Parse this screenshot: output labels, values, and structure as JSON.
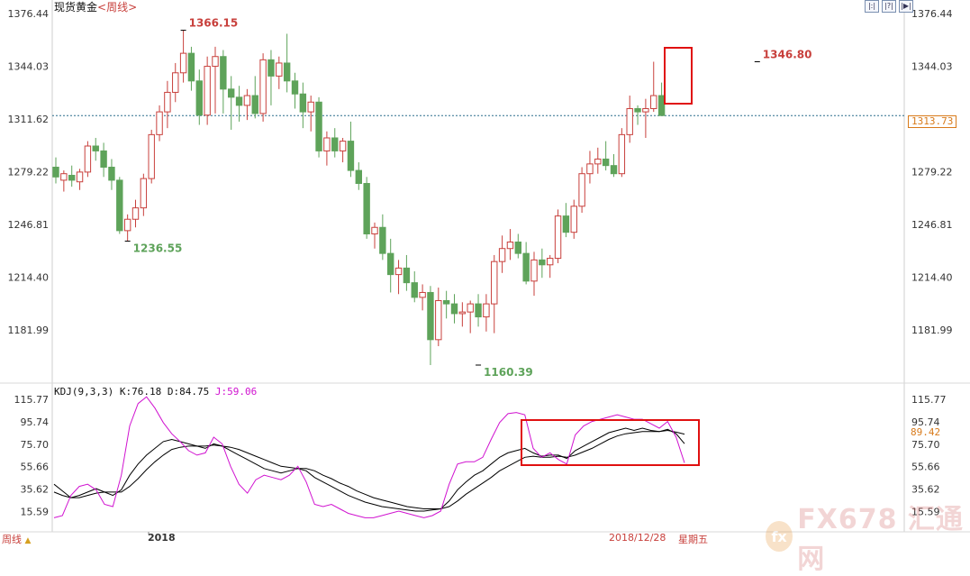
{
  "title": {
    "instrument": "现货黄金",
    "timeframe": "<周线>"
  },
  "toolbar": {
    "buttons": [
      "|:|",
      "|?|",
      "|▶|"
    ]
  },
  "current_price_label": "1313.73",
  "kdj_header": {
    "params": "KDJ(9,3,3)",
    "k": "K:76.18",
    "d": "D:84.75",
    "j": "J:59.06"
  },
  "kdj_current_label": "89.42",
  "bottom": {
    "period": "周线",
    "period_arrow": "▲",
    "year": "2018",
    "date": "2018/12/28",
    "weekday": "星期五"
  },
  "watermark": {
    "logo": "fx",
    "text": "FX678 汇通网"
  },
  "colors": {
    "up": "#c8403c",
    "down": "#5ea35a",
    "price_line": "#2c6f8c",
    "k": "#000000",
    "d": "#000000",
    "j": "#d012d0",
    "box": "#e01010"
  },
  "chart_data": [
    {
      "type": "candlestick",
      "title": "现货黄金<周线>",
      "price_axis_ticks": [
        "1376.44",
        "1344.03",
        "1311.62",
        "1279.22",
        "1246.81",
        "1214.40",
        "1181.99"
      ],
      "ylim": [
        1158,
        1380
      ],
      "current_price": 1313.73,
      "annotations": [
        {
          "label": "1366.15",
          "value": 1366.15,
          "index": 16,
          "color": "#c8403c"
        },
        {
          "label": "1236.55",
          "value": 1236.55,
          "index": 9,
          "color": "#5ea35a"
        },
        {
          "label": "1160.39",
          "value": 1160.39,
          "index": 53,
          "color": "#5ea35a"
        },
        {
          "label": "1346.80",
          "value": 1346.8,
          "index": 88,
          "color": "#c8403c"
        }
      ],
      "candles": [
        {
          "o": 1282,
          "h": 1288,
          "l": 1272,
          "c": 1276
        },
        {
          "o": 1274,
          "h": 1280,
          "l": 1267,
          "c": 1278
        },
        {
          "o": 1277,
          "h": 1283,
          "l": 1270,
          "c": 1274
        },
        {
          "o": 1273,
          "h": 1281,
          "l": 1268,
          "c": 1279
        },
        {
          "o": 1279,
          "h": 1298,
          "l": 1276,
          "c": 1295
        },
        {
          "o": 1295,
          "h": 1300,
          "l": 1286,
          "c": 1292
        },
        {
          "o": 1292,
          "h": 1297,
          "l": 1276,
          "c": 1282
        },
        {
          "o": 1282,
          "h": 1287,
          "l": 1268,
          "c": 1274
        },
        {
          "o": 1274,
          "h": 1276,
          "l": 1241,
          "c": 1243
        },
        {
          "o": 1243,
          "h": 1253,
          "l": 1236.55,
          "c": 1250
        },
        {
          "o": 1250,
          "h": 1262,
          "l": 1245,
          "c": 1257
        },
        {
          "o": 1257,
          "h": 1278,
          "l": 1252,
          "c": 1275
        },
        {
          "o": 1275,
          "h": 1305,
          "l": 1272,
          "c": 1302
        },
        {
          "o": 1302,
          "h": 1320,
          "l": 1298,
          "c": 1316
        },
        {
          "o": 1316,
          "h": 1335,
          "l": 1306,
          "c": 1328
        },
        {
          "o": 1328,
          "h": 1346,
          "l": 1322,
          "c": 1340
        },
        {
          "o": 1340,
          "h": 1366.15,
          "l": 1334,
          "c": 1352
        },
        {
          "o": 1352,
          "h": 1356,
          "l": 1329,
          "c": 1335
        },
        {
          "o": 1335,
          "h": 1342,
          "l": 1308,
          "c": 1314
        },
        {
          "o": 1314,
          "h": 1350,
          "l": 1308,
          "c": 1344
        },
        {
          "o": 1344,
          "h": 1356,
          "l": 1315,
          "c": 1350
        },
        {
          "o": 1350,
          "h": 1354,
          "l": 1315,
          "c": 1330
        },
        {
          "o": 1330,
          "h": 1338,
          "l": 1305,
          "c": 1325
        },
        {
          "o": 1325,
          "h": 1332,
          "l": 1310,
          "c": 1320
        },
        {
          "o": 1320,
          "h": 1330,
          "l": 1311,
          "c": 1326
        },
        {
          "o": 1326,
          "h": 1338,
          "l": 1312,
          "c": 1315
        },
        {
          "o": 1315,
          "h": 1352,
          "l": 1310,
          "c": 1348
        },
        {
          "o": 1348,
          "h": 1354,
          "l": 1320,
          "c": 1338
        },
        {
          "o": 1338,
          "h": 1350,
          "l": 1330,
          "c": 1346
        },
        {
          "o": 1346,
          "h": 1364,
          "l": 1328,
          "c": 1335
        },
        {
          "o": 1335,
          "h": 1340,
          "l": 1318,
          "c": 1327
        },
        {
          "o": 1327,
          "h": 1334,
          "l": 1306,
          "c": 1316
        },
        {
          "o": 1316,
          "h": 1326,
          "l": 1304,
          "c": 1322
        },
        {
          "o": 1322,
          "h": 1325,
          "l": 1288,
          "c": 1292
        },
        {
          "o": 1292,
          "h": 1304,
          "l": 1283,
          "c": 1300
        },
        {
          "o": 1300,
          "h": 1306,
          "l": 1288,
          "c": 1292
        },
        {
          "o": 1292,
          "h": 1300,
          "l": 1285,
          "c": 1298
        },
        {
          "o": 1298,
          "h": 1310,
          "l": 1276,
          "c": 1280
        },
        {
          "o": 1280,
          "h": 1285,
          "l": 1268,
          "c": 1272
        },
        {
          "o": 1272,
          "h": 1276,
          "l": 1238,
          "c": 1241
        },
        {
          "o": 1241,
          "h": 1248,
          "l": 1232,
          "c": 1245
        },
        {
          "o": 1245,
          "h": 1253,
          "l": 1225,
          "c": 1229
        },
        {
          "o": 1229,
          "h": 1238,
          "l": 1205,
          "c": 1216
        },
        {
          "o": 1216,
          "h": 1225,
          "l": 1204,
          "c": 1220
        },
        {
          "o": 1220,
          "h": 1228,
          "l": 1206,
          "c": 1211
        },
        {
          "o": 1211,
          "h": 1218,
          "l": 1199,
          "c": 1202
        },
        {
          "o": 1202,
          "h": 1210,
          "l": 1194,
          "c": 1205
        },
        {
          "o": 1205,
          "h": 1209,
          "l": 1160.39,
          "c": 1176
        },
        {
          "o": 1176,
          "h": 1208,
          "l": 1172,
          "c": 1200
        },
        {
          "o": 1200,
          "h": 1206,
          "l": 1189,
          "c": 1198
        },
        {
          "o": 1198,
          "h": 1204,
          "l": 1186,
          "c": 1192
        },
        {
          "o": 1192,
          "h": 1199,
          "l": 1184,
          "c": 1193
        },
        {
          "o": 1193,
          "h": 1200,
          "l": 1180,
          "c": 1198
        },
        {
          "o": 1198,
          "h": 1204,
          "l": 1184,
          "c": 1190
        },
        {
          "o": 1190,
          "h": 1204,
          "l": 1181,
          "c": 1198
        },
        {
          "o": 1198,
          "h": 1228,
          "l": 1180,
          "c": 1224
        },
        {
          "o": 1224,
          "h": 1240,
          "l": 1217,
          "c": 1232
        },
        {
          "o": 1232,
          "h": 1244,
          "l": 1225,
          "c": 1236
        },
        {
          "o": 1236,
          "h": 1241,
          "l": 1226,
          "c": 1229
        },
        {
          "o": 1229,
          "h": 1236,
          "l": 1210,
          "c": 1212
        },
        {
          "o": 1212,
          "h": 1230,
          "l": 1203,
          "c": 1225
        },
        {
          "o": 1225,
          "h": 1232,
          "l": 1214,
          "c": 1222
        },
        {
          "o": 1222,
          "h": 1228,
          "l": 1214,
          "c": 1226
        },
        {
          "o": 1226,
          "h": 1256,
          "l": 1223,
          "c": 1252
        },
        {
          "o": 1252,
          "h": 1260,
          "l": 1239,
          "c": 1242
        },
        {
          "o": 1242,
          "h": 1262,
          "l": 1238,
          "c": 1258
        },
        {
          "o": 1258,
          "h": 1282,
          "l": 1254,
          "c": 1278
        },
        {
          "o": 1278,
          "h": 1292,
          "l": 1272,
          "c": 1284
        },
        {
          "o": 1284,
          "h": 1294,
          "l": 1278,
          "c": 1287
        },
        {
          "o": 1287,
          "h": 1298,
          "l": 1280,
          "c": 1283
        },
        {
          "o": 1283,
          "h": 1290,
          "l": 1276,
          "c": 1278
        },
        {
          "o": 1278,
          "h": 1306,
          "l": 1276,
          "c": 1302
        },
        {
          "o": 1302,
          "h": 1326,
          "l": 1297,
          "c": 1318
        },
        {
          "o": 1318,
          "h": 1320,
          "l": 1308,
          "c": 1316
        },
        {
          "o": 1316,
          "h": 1324,
          "l": 1300,
          "c": 1318
        },
        {
          "o": 1318,
          "h": 1346.8,
          "l": 1316,
          "c": 1326
        },
        {
          "o": 1326,
          "h": 1334,
          "l": 1313.73,
          "c": 1313.73
        }
      ]
    },
    {
      "type": "line",
      "title": "KDJ(9,3,3)",
      "yticks": [
        "115.77",
        "95.74",
        "75.70",
        "55.66",
        "35.62",
        "15.59"
      ],
      "ylim": [
        5,
        122
      ],
      "series": [
        {
          "name": "K",
          "values": [
            40,
            34,
            28,
            30,
            33,
            36,
            33,
            30,
            35,
            48,
            58,
            66,
            72,
            78,
            80,
            78,
            76,
            74,
            72,
            76,
            74,
            70,
            66,
            62,
            58,
            54,
            52,
            50,
            52,
            54,
            52,
            46,
            42,
            38,
            34,
            30,
            27,
            24,
            22,
            20,
            19,
            18,
            17,
            16,
            16,
            17,
            18,
            25,
            35,
            42,
            48,
            52,
            58,
            64,
            68,
            70,
            72,
            68,
            65,
            66,
            66,
            63,
            70,
            74,
            78,
            82,
            86,
            88,
            90,
            88,
            90,
            88,
            87,
            89,
            85,
            76.18
          ]
        },
        {
          "name": "D",
          "values": [
            33,
            30,
            28,
            28,
            30,
            32,
            33,
            33,
            33,
            38,
            45,
            53,
            60,
            66,
            71,
            73,
            74,
            74,
            74,
            75,
            74,
            73,
            71,
            68,
            65,
            62,
            59,
            56,
            55,
            54,
            54,
            52,
            48,
            45,
            41,
            38,
            34,
            31,
            28,
            26,
            24,
            22,
            20,
            19,
            18,
            18,
            18,
            20,
            25,
            31,
            36,
            41,
            46,
            52,
            56,
            60,
            64,
            65,
            64,
            64,
            65,
            64,
            66,
            69,
            72,
            76,
            80,
            83,
            85,
            86,
            87,
            87,
            87,
            88,
            86.5,
            84.75
          ]
        },
        {
          "name": "J",
          "values": [
            10,
            12,
            30,
            38,
            40,
            35,
            22,
            20,
            48,
            92,
            112,
            118,
            108,
            95,
            85,
            78,
            70,
            66,
            68,
            82,
            76,
            56,
            40,
            32,
            44,
            48,
            46,
            44,
            48,
            56,
            42,
            22,
            20,
            22,
            18,
            14,
            12,
            10,
            10,
            12,
            14,
            16,
            14,
            12,
            10,
            12,
            16,
            40,
            58,
            60,
            60,
            64,
            80,
            95,
            103,
            104,
            102,
            72,
            64,
            68,
            62,
            58,
            84,
            92,
            96,
            98,
            100,
            102,
            100,
            98,
            98,
            94,
            90,
            96,
            82,
            59.06
          ]
        }
      ],
      "current_value": 89.42
    }
  ]
}
